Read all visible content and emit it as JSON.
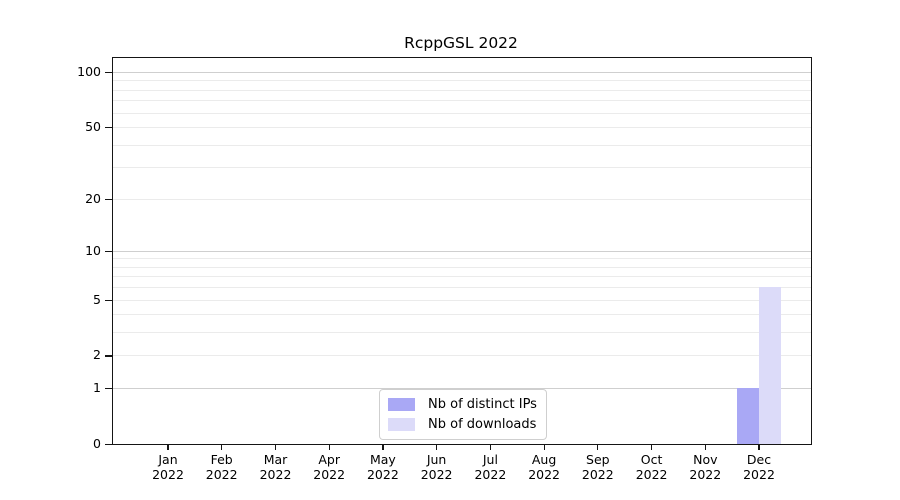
{
  "title": "RcppGSL 2022",
  "chart_data": {
    "type": "bar",
    "title": "RcppGSL 2022",
    "categories": [
      "Jan",
      "Feb",
      "Mar",
      "Apr",
      "May",
      "Jun",
      "Jul",
      "Aug",
      "Sep",
      "Oct",
      "Nov",
      "Dec"
    ],
    "year": "2022",
    "series": [
      {
        "name": "Nb of distinct IPs",
        "color": "#a9a8f5",
        "values": [
          0,
          0,
          0,
          0,
          0,
          0,
          0,
          0,
          0,
          0,
          0,
          1
        ]
      },
      {
        "name": "Nb of downloads",
        "color": "#dcdbf9",
        "values": [
          0,
          0,
          0,
          0,
          0,
          0,
          0,
          0,
          0,
          0,
          0,
          6
        ]
      }
    ],
    "xlabel": "",
    "ylabel": "",
    "yscale": "log1p",
    "ylim": [
      0,
      119
    ],
    "yticks": [
      0,
      1,
      2,
      5,
      10,
      20,
      50,
      100
    ],
    "minor_gridlines": [
      1,
      2,
      3,
      4,
      5,
      6,
      7,
      8,
      9,
      10,
      20,
      30,
      40,
      50,
      60,
      70,
      80,
      90,
      100
    ],
    "major_gridlines": [
      1,
      10,
      100
    ],
    "grid": "horizontal",
    "legend_position": "inside-bottom-center",
    "colors": {
      "grid_minor": "#ebebeb",
      "grid_major": "#cfcfcf",
      "spine": "#151515",
      "bar_distinct_ips": "#a9a8f5",
      "bar_downloads": "#dcdbf9"
    }
  }
}
